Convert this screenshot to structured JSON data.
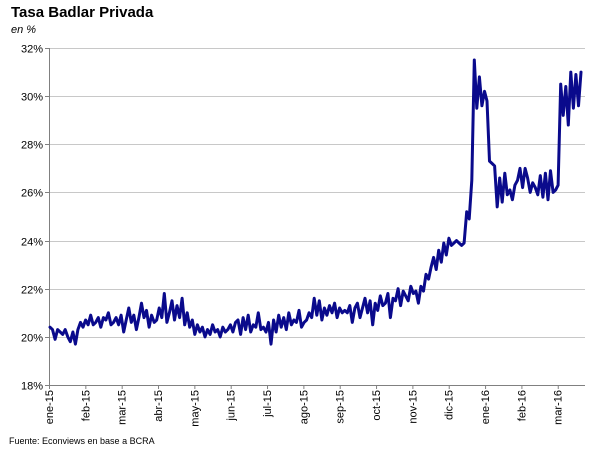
{
  "chart_data": {
    "type": "line",
    "title": "Tasa Badlar Privada",
    "subtitle": "en %",
    "source": "Fuente: Econviews en base a BCRA",
    "xlabel": "",
    "ylabel": "",
    "ylim": [
      18,
      32
    ],
    "y_ticks": [
      18,
      20,
      22,
      24,
      26,
      28,
      30,
      32
    ],
    "y_tick_labels": [
      "18%",
      "20%",
      "22%",
      "24%",
      "26%",
      "28%",
      "30%",
      "32%"
    ],
    "x_tick_labels": [
      "ene-15",
      "feb-15",
      "mar-15",
      "abr-15",
      "may-15",
      "jun-15",
      "jul-15",
      "ago-15",
      "sep-15",
      "oct-15",
      "nov-15",
      "dic-15",
      "ene-16",
      "feb-16",
      "mar-16"
    ],
    "grid": "horizontal",
    "legend": "none",
    "line_color": "#0a0a8c",
    "series": [
      {
        "values": [
          20.4,
          20.3,
          19.9,
          20.3,
          20.2,
          20.1,
          20.3,
          20.0,
          19.8,
          20.2,
          19.7,
          20.3,
          20.6,
          20.4,
          20.7,
          20.5,
          20.9,
          20.5,
          20.6,
          20.8,
          20.4,
          20.8,
          20.7,
          21.0,
          20.5,
          20.6,
          20.8,
          20.5,
          20.9,
          20.2,
          20.7,
          21.2,
          20.6,
          20.9,
          20.3,
          20.8,
          21.4,
          20.8,
          21.1,
          20.4,
          20.9,
          20.6,
          20.7,
          21.2,
          20.8,
          21.8,
          20.6,
          21.0,
          21.5,
          20.7,
          21.3,
          20.8,
          21.6,
          20.5,
          21.0,
          20.4,
          20.7,
          20.1,
          20.5,
          20.2,
          20.4,
          20.0,
          20.3,
          20.1,
          20.5,
          20.2,
          20.3,
          20.0,
          20.4,
          20.2,
          20.3,
          20.5,
          20.2,
          20.6,
          20.7,
          20.1,
          20.8,
          20.3,
          20.9,
          20.2,
          20.5,
          20.4,
          21.0,
          20.3,
          20.4,
          20.2,
          20.6,
          19.7,
          20.7,
          20.2,
          20.9,
          20.4,
          20.8,
          20.3,
          21.0,
          20.5,
          20.7,
          20.6,
          21.1,
          20.4,
          20.6,
          20.7,
          21.0,
          20.8,
          21.6,
          20.9,
          21.5,
          20.7,
          21.2,
          20.9,
          21.3,
          21.0,
          21.4,
          20.8,
          21.2,
          21.0,
          21.1,
          21.0,
          21.3,
          20.6,
          21.2,
          21.4,
          20.8,
          21.2,
          21.6,
          21.0,
          21.5,
          20.5,
          21.4,
          21.1,
          21.7,
          21.3,
          21.4,
          21.8,
          20.8,
          21.6,
          21.5,
          22.0,
          21.3,
          21.9,
          21.7,
          21.5,
          22.1,
          21.8,
          21.9,
          21.4,
          22.1,
          21.9,
          22.6,
          22.4,
          22.9,
          23.3,
          22.8,
          23.6,
          23.1,
          23.9,
          23.4,
          24.1,
          23.8,
          23.9,
          24.0,
          23.9,
          23.8,
          23.9,
          25.2,
          24.9,
          26.5,
          31.5,
          29.5,
          30.8,
          29.6,
          30.2,
          29.8,
          27.3,
          27.2,
          27.1,
          25.4,
          26.6,
          25.6,
          26.8,
          25.9,
          26.1,
          25.7,
          26.3,
          26.5,
          27.0,
          26.2,
          27.0,
          26.6,
          26.0,
          26.4,
          26.2,
          25.9,
          26.7,
          25.8,
          26.8,
          25.7,
          26.9,
          26.0,
          26.1,
          26.3,
          30.5,
          29.2,
          30.4,
          28.8,
          31.0,
          29.5,
          30.9,
          29.6,
          31.0
        ]
      }
    ]
  }
}
